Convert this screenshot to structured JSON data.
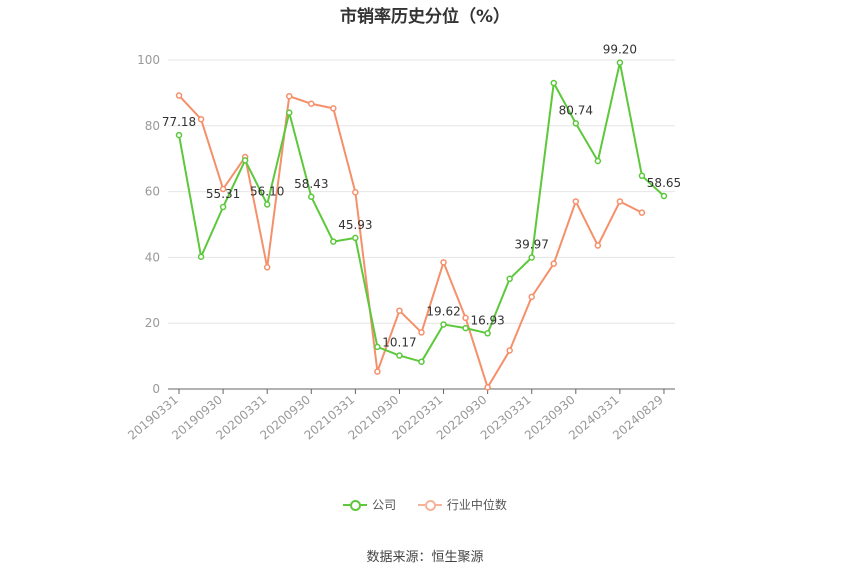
{
  "chart_data": {
    "type": "line",
    "title": "市销率历史分位（%）",
    "x_tick_labels": [
      "20190331",
      "20190930",
      "20200331",
      "20200930",
      "20210331",
      "20210930",
      "20220331",
      "20220930",
      "20230331",
      "20230930",
      "20240331",
      "20240829"
    ],
    "x": [
      "20190331",
      "20190630",
      "20190930",
      "20191231",
      "20200331",
      "20200630",
      "20200930",
      "20201231",
      "20210331",
      "20210630",
      "20210930",
      "20211231",
      "20220331",
      "20220630",
      "20220930",
      "20221231",
      "20230331",
      "20230630",
      "20230930",
      "20231231",
      "20240331",
      "20240630",
      "20240829"
    ],
    "ylim": [
      0,
      100
    ],
    "yticks": [
      0,
      20,
      40,
      60,
      80,
      100
    ],
    "grid": true,
    "legend_position": "bottom",
    "series": [
      {
        "name": "公司",
        "color": "#5dc83c",
        "values": [
          77.18,
          40.2,
          55.31,
          69.5,
          56.1,
          84.0,
          58.43,
          44.8,
          45.93,
          12.8,
          10.17,
          8.3,
          19.62,
          18.5,
          16.93,
          33.5,
          39.97,
          93.0,
          80.74,
          69.3,
          99.2,
          64.8,
          58.65
        ]
      },
      {
        "name": "行业中位数",
        "color": "#f5906a",
        "values": [
          89.2,
          82.0,
          60.8,
          70.5,
          37.0,
          89.0,
          86.7,
          85.3,
          59.8,
          5.3,
          23.8,
          17.2,
          38.5,
          21.6,
          0.5,
          11.7,
          28.0,
          38.1,
          57.0,
          43.6,
          57.0,
          53.6,
          null
        ]
      }
    ],
    "data_labels": [
      {
        "series": 0,
        "index": 0,
        "text": "77.18"
      },
      {
        "series": 0,
        "index": 2,
        "text": "55.31"
      },
      {
        "series": 0,
        "index": 4,
        "text": "56.10"
      },
      {
        "series": 0,
        "index": 6,
        "text": "58.43"
      },
      {
        "series": 0,
        "index": 8,
        "text": "45.93"
      },
      {
        "series": 0,
        "index": 10,
        "text": "10.17"
      },
      {
        "series": 0,
        "index": 12,
        "text": "19.62"
      },
      {
        "series": 0,
        "index": 14,
        "text": "16.93"
      },
      {
        "series": 0,
        "index": 16,
        "text": "39.97"
      },
      {
        "series": 0,
        "index": 18,
        "text": "80.74"
      },
      {
        "series": 0,
        "index": 20,
        "text": "99.20"
      },
      {
        "series": 0,
        "index": 22,
        "text": "58.65"
      }
    ]
  },
  "legend": {
    "company": "公司",
    "industry": "行业中位数"
  },
  "source": "数据来源：恒生聚源",
  "colors": {
    "company": "#5dc83c",
    "industry": "#f5906a",
    "grid": "#e6e6e6",
    "axis": "#666666"
  }
}
